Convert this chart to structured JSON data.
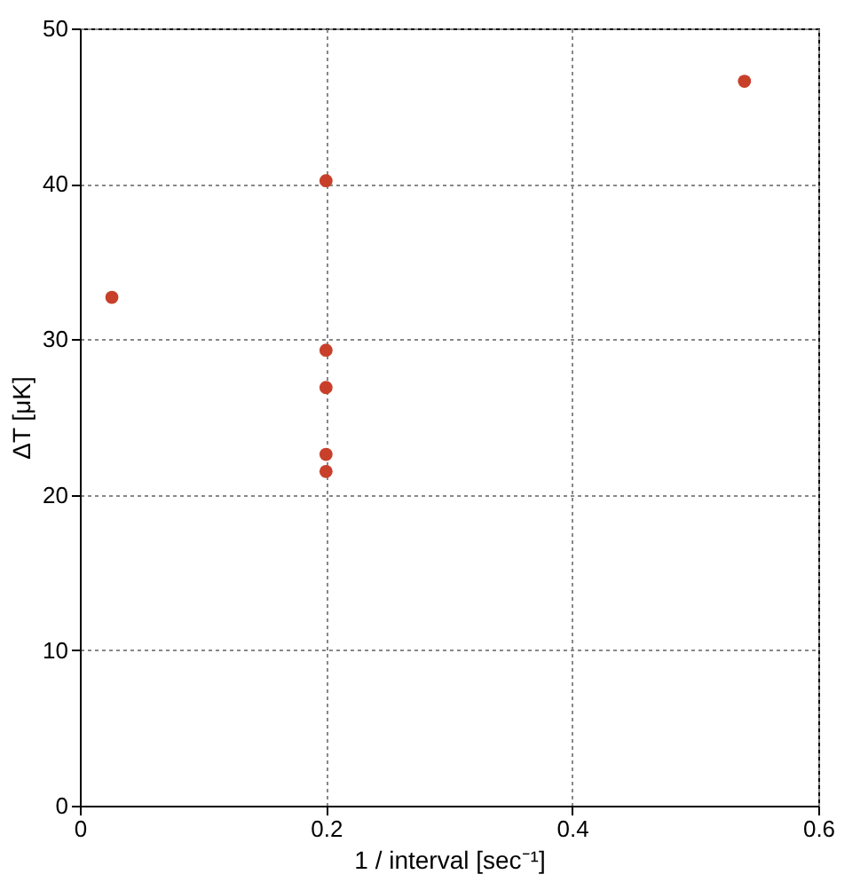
{
  "chart_data": {
    "type": "scatter",
    "xlabel": "1 / interval [sec⁻¹]",
    "ylabel": "ΔT [μK]",
    "x": [
      0.026,
      0.2,
      0.2,
      0.2,
      0.2,
      0.2,
      0.54
    ],
    "series": [
      {
        "color": "#c8402a",
        "values": [
          32.7,
          40.2,
          29.3,
          26.9,
          22.6,
          21.5,
          46.6
        ]
      }
    ],
    "xlim": [
      0,
      0.6
    ],
    "xticks": [
      0,
      0.2,
      0.4,
      0.6
    ],
    "ylim": [
      0,
      50
    ],
    "yticks": [
      0,
      10,
      20,
      30,
      40,
      50
    ],
    "grid": true,
    "marker": "circle"
  }
}
